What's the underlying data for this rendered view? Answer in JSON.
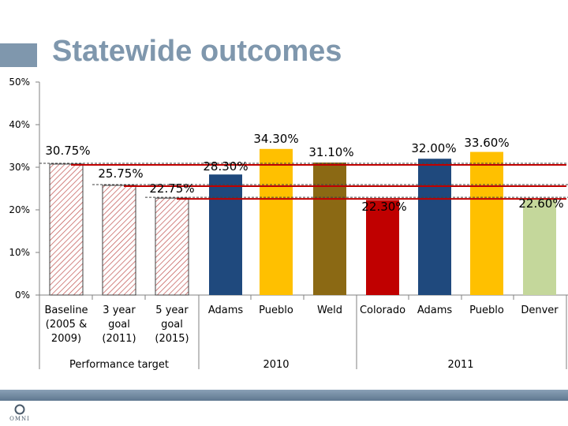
{
  "slide": {
    "title": "Statewide outcomes",
    "logo_text": "OMNI"
  },
  "colors": {
    "title": "#7f97ad",
    "adams": "#1f497d",
    "pueblo": "#ffc000",
    "weld": "#8b6914",
    "colorado": "#c00000",
    "denver": "#c4d79b",
    "target_line": "#c00000"
  },
  "chart_data": {
    "type": "bar",
    "title": "Statewide outcomes",
    "ylim": [
      0,
      50
    ],
    "y_ticks": [
      "0%",
      "10%",
      "20%",
      "30%",
      "40%",
      "50%"
    ],
    "y_tick_values": [
      0,
      10,
      20,
      30,
      40,
      50
    ],
    "groups": [
      {
        "label": "Performance target",
        "categories": [
          0,
          1,
          2
        ]
      },
      {
        "label": "2010",
        "categories": [
          3,
          4,
          5
        ]
      },
      {
        "label": "2011",
        "categories": [
          6,
          7,
          8,
          9
        ]
      }
    ],
    "categories": [
      {
        "label": [
          "Baseline",
          "(2005 &",
          "2009)"
        ],
        "value": 30.75,
        "display": "30.75%",
        "style": "hatched"
      },
      {
        "label": [
          "3 year",
          "goal",
          "(2011)"
        ],
        "value": 25.75,
        "display": "25.75%",
        "style": "hatched"
      },
      {
        "label": [
          "5 year",
          "goal",
          "(2015)"
        ],
        "value": 22.75,
        "display": "22.75%",
        "style": "hatched"
      },
      {
        "label": [
          "Adams"
        ],
        "value": 28.3,
        "display": "28.30%",
        "style": "adams"
      },
      {
        "label": [
          "Pueblo"
        ],
        "value": 34.3,
        "display": "34.30%",
        "style": "pueblo"
      },
      {
        "label": [
          "Weld"
        ],
        "value": 31.1,
        "display": "31.10%",
        "style": "weld"
      },
      {
        "label": [
          "Colorado"
        ],
        "value": 22.3,
        "display": "22.30%",
        "style": "colorado"
      },
      {
        "label": [
          "Adams"
        ],
        "value": 32.0,
        "display": "32.00%",
        "style": "adams"
      },
      {
        "label": [
          "Pueblo"
        ],
        "value": 33.6,
        "display": "33.60%",
        "style": "pueblo"
      },
      {
        "label": [
          "Denver"
        ],
        "value": 22.6,
        "display": "22.60%",
        "style": "denver"
      }
    ],
    "reference_lines": [
      {
        "name": "baseline-target",
        "value": 30.75,
        "from_category": 0
      },
      {
        "name": "3-year-goal-target",
        "value": 25.75,
        "from_category": 1
      },
      {
        "name": "5-year-goal-target",
        "value": 22.75,
        "from_category": 2
      }
    ]
  }
}
